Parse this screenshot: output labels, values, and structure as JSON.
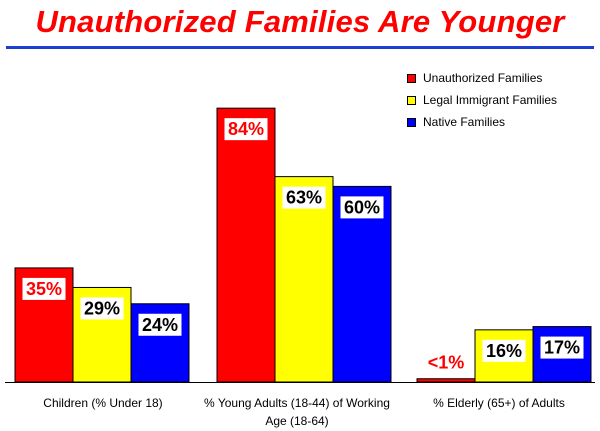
{
  "chart_data": {
    "type": "bar",
    "title": "Unauthorized Families Are Younger",
    "categories": [
      "Children (% Under 18)",
      "% Young Adults (18-44) of Working Age (18-64)",
      "% Elderly (65+) of Adults"
    ],
    "series": [
      {
        "name": "Unauthorized Families",
        "color": "#ff0000",
        "values": [
          35,
          84,
          1
        ],
        "labels": [
          "35%",
          "84%",
          "<1%"
        ]
      },
      {
        "name": "Legal Immigrant Families",
        "color": "#ffff00",
        "values": [
          29,
          63,
          16
        ],
        "labels": [
          "29%",
          "63%",
          "16%"
        ]
      },
      {
        "name": "Native Families",
        "color": "#0000ff",
        "values": [
          24,
          60,
          17
        ],
        "labels": [
          "24%",
          "60%",
          "17%"
        ]
      }
    ],
    "ylim": [
      0,
      100
    ],
    "grid": false,
    "legend_position": "top-right"
  }
}
